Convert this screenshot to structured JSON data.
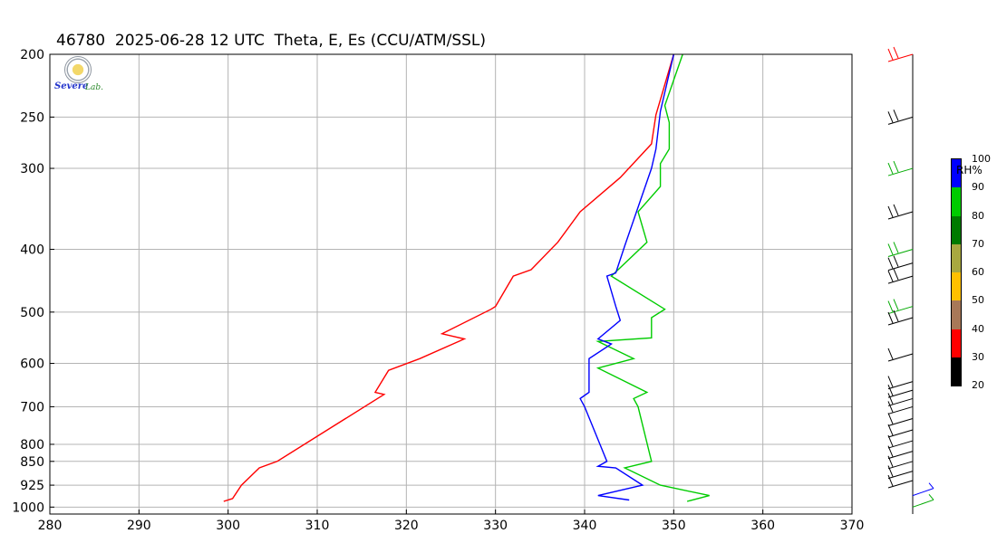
{
  "title": "46780  2025-06-28 12 UTC  Theta, E, Es (CCU/ATM/SSL)",
  "chart_data": {
    "type": "line",
    "title": "46780  2025-06-28 12 UTC  Theta, E, Es (CCU/ATM/SSL)",
    "xlabel": "",
    "ylabel": "",
    "xlim": [
      280,
      370
    ],
    "ylim": [
      1025,
      200
    ],
    "yscale": "log",
    "grid": true,
    "x_ticks": [
      280,
      290,
      300,
      310,
      320,
      330,
      340,
      350,
      360,
      370
    ],
    "y_ticks": [
      200,
      250,
      300,
      400,
      500,
      600,
      700,
      800,
      850,
      925,
      1000
    ],
    "series": [
      {
        "color": "#ff0000",
        "points": [
          [
            299.5,
            980
          ],
          [
            300.5,
            970
          ],
          [
            301.5,
            925
          ],
          [
            303.5,
            870
          ],
          [
            305.5,
            850
          ],
          [
            317.5,
            670
          ],
          [
            316.5,
            665
          ],
          [
            318,
            615
          ],
          [
            321.5,
            590
          ],
          [
            326.5,
            550
          ],
          [
            324,
            540
          ],
          [
            329.5,
            495
          ],
          [
            330,
            490
          ],
          [
            332,
            440
          ],
          [
            334,
            430
          ],
          [
            337,
            390
          ],
          [
            339.5,
            350
          ],
          [
            344,
            310
          ],
          [
            347.5,
            275
          ],
          [
            348,
            248
          ],
          [
            350,
            200
          ]
        ]
      },
      {
        "color": "#00cc00",
        "points": [
          [
            351.5,
            980
          ],
          [
            354,
            960
          ],
          [
            348.5,
            925
          ],
          [
            344.5,
            870
          ],
          [
            347.5,
            850
          ],
          [
            346,
            700
          ],
          [
            345.5,
            680
          ],
          [
            347,
            665
          ],
          [
            341.5,
            610
          ],
          [
            345.5,
            590
          ],
          [
            341.5,
            555
          ],
          [
            347.5,
            548
          ],
          [
            347.5,
            510
          ],
          [
            349,
            495
          ],
          [
            343,
            440
          ],
          [
            347,
            390
          ],
          [
            346,
            350
          ],
          [
            348.5,
            320
          ],
          [
            348.5,
            295
          ],
          [
            349.5,
            280
          ],
          [
            349.5,
            255
          ],
          [
            349,
            240
          ],
          [
            351,
            200
          ]
        ]
      },
      {
        "color": "#0000ff",
        "points": [
          [
            345,
            975
          ],
          [
            341.5,
            960
          ],
          [
            346.5,
            925
          ],
          [
            343.5,
            870
          ],
          [
            341.5,
            865
          ],
          [
            342.5,
            850
          ],
          [
            340,
            700
          ],
          [
            339.5,
            680
          ],
          [
            340.5,
            665
          ],
          [
            340.5,
            610
          ],
          [
            340.5,
            590
          ],
          [
            343,
            560
          ],
          [
            341.5,
            550
          ],
          [
            344,
            515
          ],
          [
            343.5,
            490
          ],
          [
            342.5,
            440
          ],
          [
            343.5,
            435
          ],
          [
            344.5,
            395
          ],
          [
            347.5,
            300
          ],
          [
            348,
            280
          ],
          [
            348.5,
            245
          ],
          [
            350,
            200
          ]
        ]
      }
    ]
  },
  "rh_colorbar": {
    "label": "RH%",
    "ticks": [
      "100",
      "90",
      "80",
      "70",
      "60",
      "50",
      "40",
      "30",
      "20"
    ],
    "colors": [
      "#0000ff",
      "#00cc00",
      "#007a00",
      "#a8a840",
      "#ffc000",
      "#a87858",
      "#ff0000",
      "#000000"
    ]
  },
  "logo": {
    "text1": "Severe",
    "text2": "Lab."
  },
  "wind_barbs": [
    {
      "p": 200,
      "color": "#ff0000"
    },
    {
      "p": 250,
      "color": "#000000"
    },
    {
      "p": 300,
      "color": "#00aa00"
    },
    {
      "p": 350,
      "color": "#000000"
    },
    {
      "p": 400,
      "color": "#00aa00"
    },
    {
      "p": 420,
      "color": "#000000"
    },
    {
      "p": 440,
      "color": "#000000"
    },
    {
      "p": 490,
      "color": "#00aa00"
    },
    {
      "p": 510,
      "color": "#000000"
    },
    {
      "p": 580,
      "color": "#000000"
    },
    {
      "p": 640,
      "color": "#000000"
    },
    {
      "p": 660,
      "color": "#000000"
    },
    {
      "p": 680,
      "color": "#000000"
    },
    {
      "p": 700,
      "color": "#000000"
    },
    {
      "p": 730,
      "color": "#000000"
    },
    {
      "p": 760,
      "color": "#000000"
    },
    {
      "p": 790,
      "color": "#000000"
    },
    {
      "p": 820,
      "color": "#000000"
    },
    {
      "p": 850,
      "color": "#000000"
    },
    {
      "p": 880,
      "color": "#000000"
    },
    {
      "p": 910,
      "color": "#000000"
    },
    {
      "p": 960,
      "color": "#0000ff"
    },
    {
      "p": 1000,
      "color": "#00aa00"
    }
  ]
}
